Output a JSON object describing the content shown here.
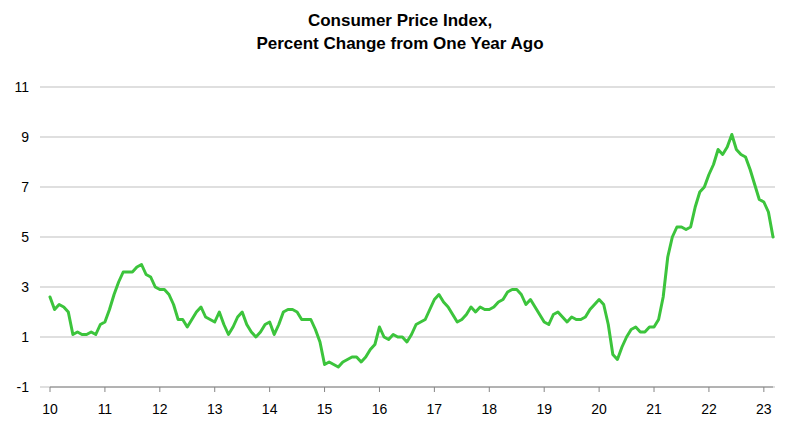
{
  "chart_data": {
    "type": "line",
    "title": "Consumer Price Index,",
    "subtitle": "Percent Change from One Year Ago",
    "x": [
      10,
      10.0833,
      10.1667,
      10.25,
      10.3333,
      10.4167,
      10.5,
      10.5833,
      10.6667,
      10.75,
      10.8333,
      10.9167,
      11,
      11.0833,
      11.1667,
      11.25,
      11.3333,
      11.4167,
      11.5,
      11.5833,
      11.6667,
      11.75,
      11.8333,
      11.9167,
      12,
      12.0833,
      12.1667,
      12.25,
      12.3333,
      12.4167,
      12.5,
      12.5833,
      12.6667,
      12.75,
      12.8333,
      12.9167,
      13,
      13.0833,
      13.1667,
      13.25,
      13.3333,
      13.4167,
      13.5,
      13.5833,
      13.6667,
      13.75,
      13.8333,
      13.9167,
      14,
      14.0833,
      14.1667,
      14.25,
      14.3333,
      14.4167,
      14.5,
      14.5833,
      14.6667,
      14.75,
      14.8333,
      14.9167,
      15,
      15.0833,
      15.1667,
      15.25,
      15.3333,
      15.4167,
      15.5,
      15.5833,
      15.6667,
      15.75,
      15.8333,
      15.9167,
      16,
      16.0833,
      16.1667,
      16.25,
      16.3333,
      16.4167,
      16.5,
      16.5833,
      16.6667,
      16.75,
      16.8333,
      16.9167,
      17,
      17.0833,
      17.1667,
      17.25,
      17.3333,
      17.4167,
      17.5,
      17.5833,
      17.6667,
      17.75,
      17.8333,
      17.9167,
      18,
      18.0833,
      18.1667,
      18.25,
      18.3333,
      18.4167,
      18.5,
      18.5833,
      18.6667,
      18.75,
      18.8333,
      18.9167,
      19,
      19.0833,
      19.1667,
      19.25,
      19.3333,
      19.4167,
      19.5,
      19.5833,
      19.6667,
      19.75,
      19.8333,
      19.9167,
      20,
      20.0833,
      20.1667,
      20.25,
      20.3333,
      20.4167,
      20.5,
      20.5833,
      20.6667,
      20.75,
      20.8333,
      20.9167,
      21,
      21.0833,
      21.1667,
      21.25,
      21.3333,
      21.4167,
      21.5,
      21.5833,
      21.6667,
      21.75,
      21.8333,
      21.9167,
      22,
      22.0833,
      22.1667,
      22.25,
      22.3333,
      22.4167,
      22.5,
      22.5833,
      22.6667,
      22.75,
      22.8333,
      22.9167,
      23,
      23.0833,
      23.1667
    ],
    "values": [
      2.6,
      2.1,
      2.3,
      2.2,
      2.0,
      1.1,
      1.2,
      1.1,
      1.1,
      1.2,
      1.1,
      1.5,
      1.6,
      2.1,
      2.7,
      3.2,
      3.6,
      3.6,
      3.6,
      3.8,
      3.9,
      3.5,
      3.4,
      3.0,
      2.9,
      2.9,
      2.7,
      2.3,
      1.7,
      1.7,
      1.4,
      1.7,
      2.0,
      2.2,
      1.8,
      1.7,
      1.6,
      2.0,
      1.5,
      1.1,
      1.4,
      1.8,
      2.0,
      1.5,
      1.2,
      1.0,
      1.2,
      1.5,
      1.6,
      1.1,
      1.5,
      2.0,
      2.1,
      2.1,
      2.0,
      1.7,
      1.7,
      1.7,
      1.3,
      0.8,
      -0.1,
      0.0,
      -0.1,
      -0.2,
      0.0,
      0.1,
      0.2,
      0.2,
      0.0,
      0.2,
      0.5,
      0.7,
      1.4,
      1.0,
      0.9,
      1.1,
      1.0,
      1.0,
      0.8,
      1.1,
      1.5,
      1.6,
      1.7,
      2.1,
      2.5,
      2.7,
      2.4,
      2.2,
      1.9,
      1.6,
      1.7,
      1.9,
      2.2,
      2.0,
      2.2,
      2.1,
      2.1,
      2.2,
      2.4,
      2.5,
      2.8,
      2.9,
      2.9,
      2.7,
      2.3,
      2.5,
      2.2,
      1.9,
      1.6,
      1.5,
      1.9,
      2.0,
      1.8,
      1.6,
      1.8,
      1.7,
      1.7,
      1.8,
      2.1,
      2.3,
      2.5,
      2.3,
      1.5,
      0.3,
      0.1,
      0.6,
      1.0,
      1.3,
      1.4,
      1.2,
      1.2,
      1.4,
      1.4,
      1.7,
      2.6,
      4.2,
      5.0,
      5.4,
      5.4,
      5.3,
      5.4,
      6.2,
      6.8,
      7.0,
      7.5,
      7.9,
      8.5,
      8.3,
      8.6,
      9.1,
      8.5,
      8.3,
      8.2,
      7.7,
      7.1,
      6.5,
      6.4,
      6.0,
      5.0
    ],
    "color": "#3cc43c",
    "xlim": [
      10,
      23.1667
    ],
    "xticks": [
      10,
      11,
      12,
      13,
      14,
      15,
      16,
      17,
      18,
      19,
      20,
      21,
      22,
      23
    ],
    "ylim": [
      -1,
      11
    ],
    "yticks": [
      -1,
      1,
      3,
      5,
      7,
      9,
      11
    ],
    "grid": true
  }
}
